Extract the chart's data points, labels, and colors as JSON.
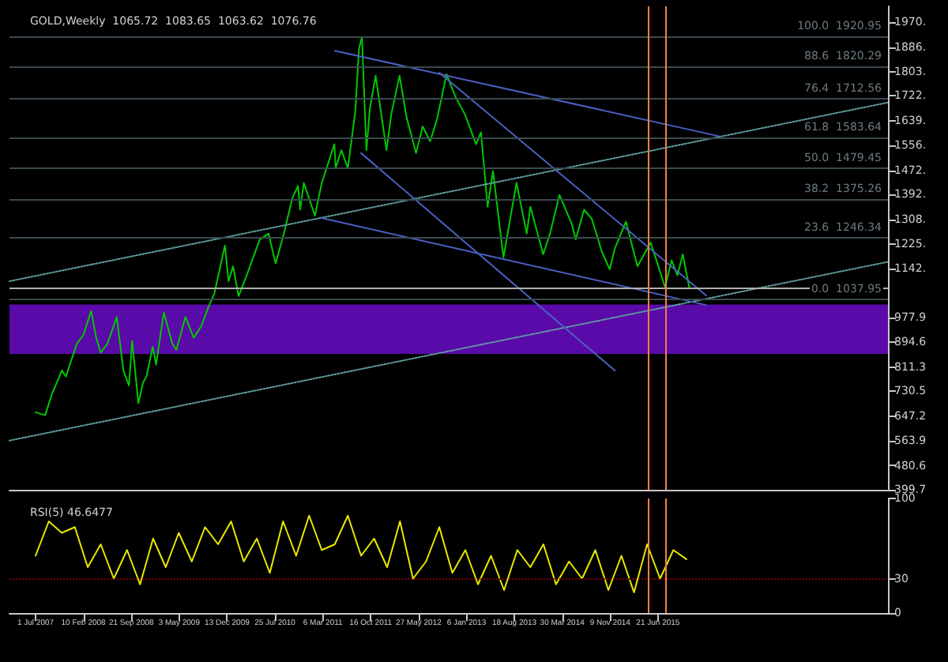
{
  "chart_data": [
    {
      "type": "line",
      "title": "GOLD,Weekly  1065.72  1083.65  1063.62  1076.76",
      "tick_labels": "y",
      "xlim": [
        "2007-03-01",
        "2018-06-01"
      ],
      "ylim": [
        399.7,
        2023
      ],
      "yticks": [
        {
          "value": 399.7,
          "label": "399.7"
        },
        {
          "value": 480.6,
          "label": "480.6"
        },
        {
          "value": 563.9,
          "label": "563.9"
        },
        {
          "value": 647.2,
          "label": "647.2"
        },
        {
          "value": 730.5,
          "label": "730.5"
        },
        {
          "value": 811.3,
          "label": "811.3"
        },
        {
          "value": 894.6,
          "label": "894.6"
        },
        {
          "value": 977.9,
          "label": "977.9"
        },
        {
          "value": 1142,
          "label": "1142."
        },
        {
          "value": 1225,
          "label": "1225."
        },
        {
          "value": 1308,
          "label": "1308."
        },
        {
          "value": 1392,
          "label": "1392."
        },
        {
          "value": 1472,
          "label": "1472."
        },
        {
          "value": 1556,
          "label": "1556."
        },
        {
          "value": 1639,
          "label": "1639."
        },
        {
          "value": 1722,
          "label": "1722."
        },
        {
          "value": 1803,
          "label": "1803."
        },
        {
          "value": 1886,
          "label": "1886."
        },
        {
          "value": 1970,
          "label": "1970."
        }
      ],
      "series": [
        {
          "color": "#00c800",
          "x": [
            "2007-07-01",
            "2007-08-15",
            "2007-09-15",
            "2007-11-01",
            "2007-11-20",
            "2008-01-10",
            "2008-02-10",
            "2008-03-17",
            "2008-04-10",
            "2008-05-01",
            "2008-06-01",
            "2008-07-15",
            "2008-08-15",
            "2008-09-10",
            "2008-09-25",
            "2008-10-24",
            "2008-11-15",
            "2008-12-01",
            "2008-12-30",
            "2009-01-15",
            "2009-02-20",
            "2009-04-01",
            "2009-04-20",
            "2009-06-01",
            "2009-07-10",
            "2009-08-15",
            "2009-09-15",
            "2009-10-15",
            "2009-12-03",
            "2009-12-20",
            "2010-01-10",
            "2010-02-05",
            "2010-03-15",
            "2010-05-15",
            "2010-06-25",
            "2010-07-28",
            "2010-09-01",
            "2010-10-15",
            "2010-11-10",
            "2010-11-20",
            "2010-12-07",
            "2011-01-28",
            "2011-03-01",
            "2011-04-29",
            "2011-05-05",
            "2011-06-01",
            "2011-07-01",
            "2011-08-05",
            "2011-08-22",
            "2011-09-05",
            "2011-09-26",
            "2011-10-12",
            "2011-11-08",
            "2011-12-29",
            "2012-01-20",
            "2012-02-28",
            "2012-04-01",
            "2012-05-15",
            "2012-06-15",
            "2012-07-20",
            "2012-08-20",
            "2012-10-05",
            "2012-11-15",
            "2012-12-30",
            "2013-02-20",
            "2013-03-15",
            "2013-04-15",
            "2013-05-10",
            "2013-06-28",
            "2013-08-28",
            "2013-10-15",
            "2013-11-01",
            "2013-12-31",
            "2014-02-01",
            "2014-03-17",
            "2014-05-15",
            "2014-06-01",
            "2014-07-10",
            "2014-08-15",
            "2014-10-01",
            "2014-11-07",
            "2014-12-01",
            "2015-01-22",
            "2015-03-17",
            "2015-05-18",
            "2015-07-24",
            "2015-08-24",
            "2015-09-20",
            "2015-10-15",
            "2015-11-15"
          ],
          "values": [
            660,
            650,
            720,
            800,
            780,
            890,
            920,
            1000,
            910,
            860,
            890,
            980,
            800,
            750,
            900,
            690,
            760,
            780,
            880,
            820,
            995,
            890,
            870,
            980,
            910,
            950,
            1010,
            1060,
            1220,
            1100,
            1150,
            1050,
            1120,
            1240,
            1260,
            1160,
            1250,
            1380,
            1420,
            1340,
            1430,
            1320,
            1430,
            1560,
            1480,
            1540,
            1480,
            1670,
            1880,
            1920,
            1540,
            1680,
            1790,
            1540,
            1660,
            1790,
            1650,
            1530,
            1620,
            1570,
            1640,
            1795,
            1720,
            1660,
            1560,
            1600,
            1350,
            1470,
            1180,
            1430,
            1260,
            1350,
            1190,
            1260,
            1390,
            1290,
            1240,
            1340,
            1310,
            1200,
            1140,
            1210,
            1300,
            1150,
            1230,
            1080,
            1170,
            1120,
            1190,
            1077
          ]
        },
        {
          "color": "#5f9ea0",
          "line_style": "dotted",
          "x": [
            "2007-03-01",
            "2018-06-01"
          ],
          "values": [
            1100,
            1700
          ]
        },
        {
          "color": "#5f9ea0",
          "line_style": "dotted",
          "x": [
            "2007-03-01",
            "2018-06-01"
          ],
          "values": [
            565,
            1165
          ]
        },
        {
          "color": "#4a5fc1",
          "x": [
            "2011-05-01",
            "2016-04-01"
          ],
          "values": [
            1874,
            1587
          ]
        },
        {
          "color": "#4a5fc1",
          "x": [
            "2012-09-01",
            "2016-02-01"
          ],
          "values": [
            1800,
            1052
          ]
        },
        {
          "color": "#4a5fc1",
          "x": [
            "2011-03-01",
            "2016-02-01"
          ],
          "values": [
            1312,
            1020
          ]
        },
        {
          "color": "#4a5fc1",
          "x": [
            "2011-09-01",
            "2014-12-01"
          ],
          "values": [
            1530,
            800
          ]
        }
      ],
      "bands": [
        {
          "axis": "y",
          "from": 856,
          "to": 1022,
          "color": "#5a0aa8"
        }
      ],
      "ref_lines": [
        {
          "axis": "y",
          "value": 1076.76,
          "color": "#b0b0b0"
        },
        {
          "axis": "y",
          "value": 1920.95,
          "label": "100.0  1920.95",
          "color": "#3a4a50"
        },
        {
          "axis": "y",
          "value": 1820.29,
          "label": "88.6  1820.29",
          "color": "#3a4a50"
        },
        {
          "axis": "y",
          "value": 1712.56,
          "label": "76.4  1712.56",
          "color": "#3a4a50"
        },
        {
          "axis": "y",
          "value": 1583.64,
          "label": "61.8  1583.64",
          "color": "#3a4a50"
        },
        {
          "axis": "y",
          "value": 1479.45,
          "label": "50.0  1479.45",
          "color": "#3a4a50"
        },
        {
          "axis": "y",
          "value": 1375.26,
          "label": "38.2  1375.26",
          "color": "#3a4a50"
        },
        {
          "axis": "y",
          "value": 1246.34,
          "label": "23.6  1246.34",
          "color": "#3a4a50"
        },
        {
          "axis": "y",
          "value": 1037.95,
          "label": "0.0  1037.95",
          "color": "#3a4a50"
        },
        {
          "axis": "x",
          "value": "2015-05-03",
          "color": "#f08040"
        },
        {
          "axis": "x",
          "value": "2015-07-26",
          "color": "#f08040"
        }
      ]
    },
    {
      "type": "line",
      "title": "RSI(5) 46.6477",
      "xlim": [
        "2007-03-01",
        "2018-06-01"
      ],
      "ylim": [
        0,
        100
      ],
      "yticks": [
        0,
        30,
        100
      ],
      "xticks": [
        {
          "value": "2007-07-01",
          "label": "1 Jul 2007"
        },
        {
          "value": "2008-02-10",
          "label": "10 Feb 2008"
        },
        {
          "value": "2008-09-21",
          "label": "21 Sep 2008"
        },
        {
          "value": "2009-05-03",
          "label": "3 May 2009"
        },
        {
          "value": "2009-12-13",
          "label": "13 Dec 2009"
        },
        {
          "value": "2010-07-25",
          "label": "25 Jul 2010"
        },
        {
          "value": "2011-03-06",
          "label": "6 Mar 2011"
        },
        {
          "value": "2011-10-16",
          "label": "16 Oct 2011"
        },
        {
          "value": "2012-05-27",
          "label": "27 May 2012"
        },
        {
          "value": "2013-01-06",
          "label": "6 Jan 2013"
        },
        {
          "value": "2013-08-18",
          "label": "18 Aug 2013"
        },
        {
          "value": "2014-03-30",
          "label": "30 Mar 2014"
        },
        {
          "value": "2014-11-09",
          "label": "9 Nov 2014"
        },
        {
          "value": "2015-06-21",
          "label": "21 Jun 2015"
        }
      ],
      "series": [
        {
          "color": "#e8e800",
          "x": [
            "2007-07",
            "2007-09",
            "2007-11",
            "2008-01",
            "2008-03",
            "2008-05",
            "2008-07",
            "2008-09",
            "2008-11",
            "2009-01",
            "2009-03",
            "2009-05",
            "2009-07",
            "2009-09",
            "2009-11",
            "2010-01",
            "2010-03",
            "2010-05",
            "2010-07",
            "2010-09",
            "2010-11",
            "2011-01",
            "2011-03",
            "2011-05",
            "2011-07",
            "2011-09",
            "2011-11",
            "2012-01",
            "2012-03",
            "2012-05",
            "2012-07",
            "2012-09",
            "2012-11",
            "2013-01",
            "2013-03",
            "2013-05",
            "2013-07",
            "2013-09",
            "2013-11",
            "2014-01",
            "2014-03",
            "2014-05",
            "2014-07",
            "2014-09",
            "2014-11",
            "2015-01",
            "2015-03",
            "2015-05",
            "2015-07",
            "2015-09",
            "2015-11"
          ],
          "values": [
            50,
            80,
            70,
            75,
            40,
            60,
            30,
            55,
            25,
            65,
            40,
            70,
            45,
            75,
            60,
            80,
            45,
            65,
            35,
            80,
            50,
            85,
            55,
            60,
            85,
            50,
            65,
            40,
            80,
            30,
            45,
            75,
            35,
            55,
            25,
            50,
            20,
            55,
            40,
            60,
            25,
            45,
            30,
            55,
            20,
            50,
            18,
            60,
            30,
            55,
            47
          ]
        }
      ],
      "ref_lines": [
        {
          "axis": "y",
          "value": 30,
          "color": "#800000",
          "line_style": "dotted"
        },
        {
          "axis": "x",
          "value": "2015-05-03",
          "color": "#f08040"
        },
        {
          "axis": "x",
          "value": "2015-07-26",
          "color": "#f08040"
        }
      ]
    }
  ]
}
